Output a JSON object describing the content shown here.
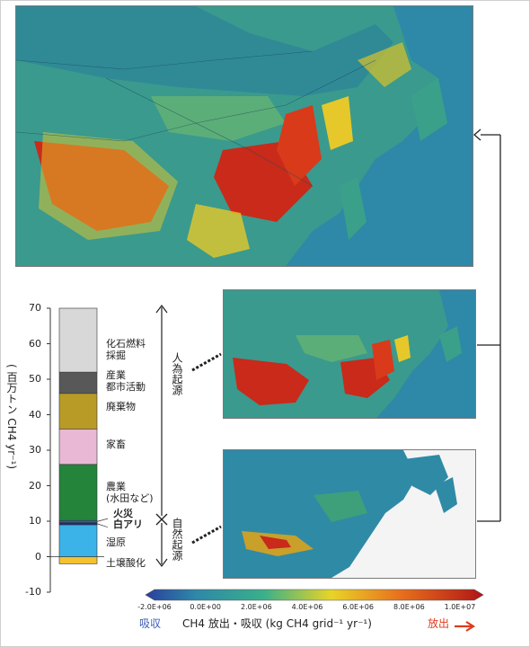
{
  "chart_data": {
    "type": "bar",
    "orientation": "stacked",
    "ylabel": "( 百万トン CH4 yr⁻¹)",
    "ylim": [
      -10,
      70
    ],
    "yticks": [
      "70",
      "60",
      "50",
      "40",
      "30",
      "20",
      "10",
      "0",
      "-10"
    ],
    "segments": [
      {
        "name": "土壌酸化",
        "from": -2,
        "to": 0,
        "color": "#f2c232"
      },
      {
        "name": "湿原",
        "from": 0,
        "to": 9,
        "color": "#3bb3e8"
      },
      {
        "name": "白アリ",
        "from": 9,
        "to": 9.6,
        "color": "#1f2a7a"
      },
      {
        "name": "火災",
        "from": 9.6,
        "to": 10.2,
        "color": "#2a5fb0"
      },
      {
        "name": "農業\n(水田など)",
        "from": 10.2,
        "to": 26,
        "color": "#24843a"
      },
      {
        "name": "家畜",
        "from": 26,
        "to": 36,
        "color": "#e8b8d4"
      },
      {
        "name": "廃棄物",
        "from": 36,
        "to": 46,
        "color": "#b89a26"
      },
      {
        "name": "産業\n都市活動",
        "from": 46,
        "to": 52,
        "color": "#585858"
      },
      {
        "name": "化石燃料\n採掘",
        "from": 52,
        "to": 70,
        "color": "#d8d8d8"
      }
    ],
    "brackets": {
      "anthropogenic": "人為起源",
      "natural": "自然起源"
    }
  },
  "colorbar": {
    "ticks": [
      "-2.0E+06",
      "0.0E+00",
      "2.0E+06",
      "4.0E+06",
      "6.0E+06",
      "8.0E+06",
      "1.0E+07"
    ],
    "title": "CH4 放出・吸収 (kg CH4 grid⁻¹ yr⁻¹)",
    "left_label": "吸収",
    "right_label": "放出",
    "left_color": "#3b5db5",
    "right_color": "#e03a1e"
  }
}
